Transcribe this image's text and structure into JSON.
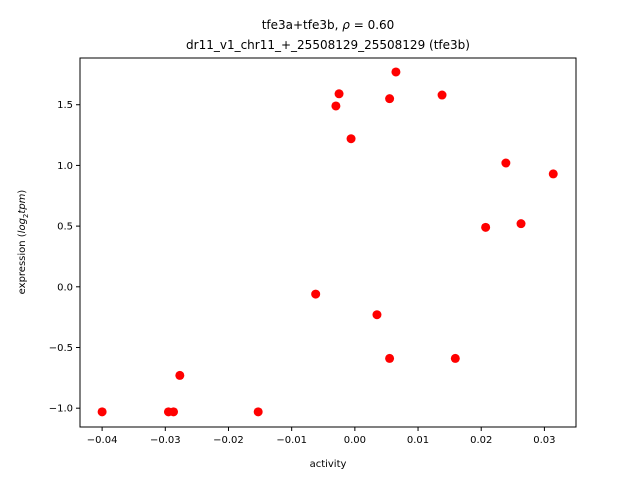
{
  "chart_data": {
    "type": "scatter",
    "title_line1_pre": "tfe3a+tfe3b, ",
    "title_rho_symbol": "ρ",
    "title_line1_post": " = 0.60",
    "title_line2": "dr11_v1_chr11_+_25508129_25508129 (tfe3b)",
    "xlabel": "activity",
    "ylabel_pre": "expression (",
    "ylabel_log": "log",
    "ylabel_sub": "2",
    "ylabel_tpm": "tpm",
    "ylabel_post": ")",
    "xlim": [
      -0.0435,
      0.035
    ],
    "ylim": [
      -1.155,
      1.885
    ],
    "xticks": [
      -0.04,
      -0.03,
      -0.02,
      -0.01,
      0.0,
      0.01,
      0.02,
      0.03
    ],
    "xtick_labels": [
      "−0.04",
      "−0.03",
      "−0.02",
      "−0.01",
      "0.00",
      "0.01",
      "0.02",
      "0.03"
    ],
    "yticks": [
      -1.0,
      -0.5,
      0.0,
      0.5,
      1.0,
      1.5
    ],
    "ytick_labels": [
      "−1.0",
      "−0.5",
      "0.0",
      "0.5",
      "1.0",
      "1.5"
    ],
    "grid": false,
    "marker_color": "#ff0000",
    "points": [
      {
        "x": -0.04,
        "y": -1.03
      },
      {
        "x": -0.0295,
        "y": -1.03
      },
      {
        "x": -0.0287,
        "y": -1.03
      },
      {
        "x": -0.0277,
        "y": -0.73
      },
      {
        "x": -0.0153,
        "y": -1.03
      },
      {
        "x": -0.0062,
        "y": -0.06
      },
      {
        "x": -0.003,
        "y": 1.49
      },
      {
        "x": -0.0025,
        "y": 1.59
      },
      {
        "x": -0.0006,
        "y": 1.22
      },
      {
        "x": 0.0035,
        "y": -0.23
      },
      {
        "x": 0.0055,
        "y": 1.55
      },
      {
        "x": 0.0055,
        "y": -0.59
      },
      {
        "x": 0.0065,
        "y": 1.77
      },
      {
        "x": 0.0138,
        "y": 1.58
      },
      {
        "x": 0.0159,
        "y": -0.59
      },
      {
        "x": 0.0207,
        "y": 0.49
      },
      {
        "x": 0.0239,
        "y": 1.02
      },
      {
        "x": 0.0263,
        "y": 0.52
      },
      {
        "x": 0.0314,
        "y": 0.93
      }
    ]
  }
}
